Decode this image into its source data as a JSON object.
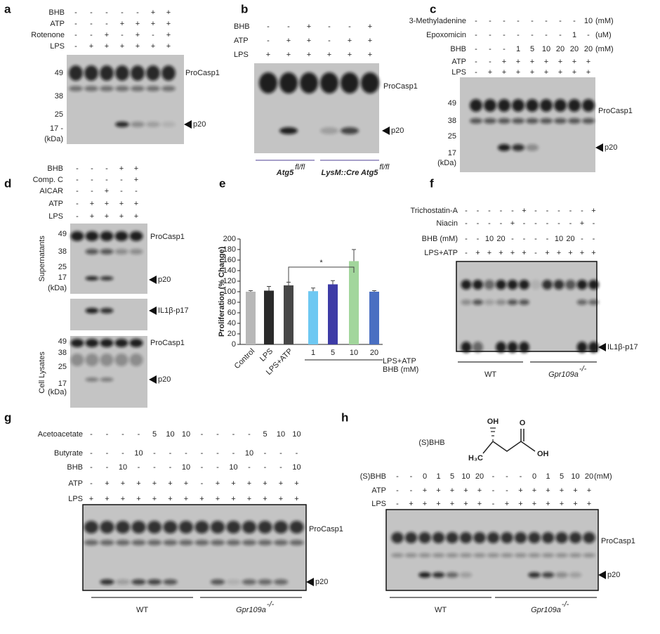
{
  "figure": {
    "a": {
      "letter": "a",
      "rows": [
        {
          "label": "BHB",
          "cells": [
            "-",
            "-",
            "-",
            "-",
            "-",
            "+",
            "+"
          ]
        },
        {
          "label": "ATP",
          "cells": [
            "-",
            "-",
            "-",
            "+",
            "+",
            "+",
            "+"
          ]
        },
        {
          "label": "Rotenone",
          "cells": [
            "-",
            "-",
            "+",
            "-",
            "+",
            "-",
            "+"
          ]
        },
        {
          "label": "LPS",
          "cells": [
            "-",
            "+",
            "+",
            "+",
            "+",
            "+",
            "+"
          ]
        }
      ],
      "blots": [
        {
          "markers": [
            "49",
            "38",
            "25",
            "17 -",
            "(kDa)"
          ],
          "bands": [
            "ProCasp1",
            "p20"
          ]
        }
      ]
    },
    "b": {
      "letter": "b",
      "rows": [
        {
          "label": "BHB",
          "cells": [
            "-",
            "-",
            "+",
            "-",
            "-",
            "+"
          ]
        },
        {
          "label": "ATP",
          "cells": [
            "-",
            "+",
            "+",
            "-",
            "+",
            "+"
          ]
        },
        {
          "label": "LPS",
          "cells": [
            "+",
            "+",
            "+",
            "+",
            "+",
            "+"
          ]
        }
      ],
      "blots": [
        {
          "bands": [
            "ProCasp1",
            "p20"
          ]
        }
      ],
      "groups": [
        {
          "text": "Atg5",
          "sup": "fl/fl"
        },
        {
          "text": "LysM::Cre Atg5",
          "sup": "fl/fl"
        }
      ]
    },
    "c": {
      "letter": "c",
      "rows": [
        {
          "label": "3-Methyladenine",
          "cells": [
            "-",
            "-",
            "-",
            "-",
            "-",
            "-",
            "-",
            "-",
            "10"
          ],
          "unit": "(mM)"
        },
        {
          "label": "Epoxomicin",
          "cells": [
            "-",
            "-",
            "-",
            "-",
            "-",
            "-",
            "-",
            "1",
            "-"
          ],
          "unit": "(uM)"
        },
        {
          "label": "BHB",
          "cells": [
            "-",
            "-",
            "-",
            "1",
            "5",
            "10",
            "20",
            "20",
            "20"
          ],
          "unit": "(mM)"
        },
        {
          "label": "ATP",
          "cells": [
            "-",
            "-",
            "+",
            "+",
            "+",
            "+",
            "+",
            "+",
            "+"
          ]
        },
        {
          "label": "LPS",
          "cells": [
            "-",
            "+",
            "+",
            "+",
            "+",
            "+",
            "+",
            "+",
            "+"
          ]
        }
      ],
      "blots": [
        {
          "markers": [
            "49",
            "38",
            "25",
            "17",
            "(kDa)"
          ],
          "bands": [
            "ProCasp1",
            "p20"
          ]
        }
      ]
    },
    "d": {
      "letter": "d",
      "rows": [
        {
          "label": "BHB",
          "cells": [
            "-",
            "-",
            "-",
            "+",
            "+"
          ]
        },
        {
          "label": "Comp. C",
          "cells": [
            "-",
            "-",
            "-",
            "-",
            "+"
          ]
        },
        {
          "label": "AICAR",
          "cells": [
            "-",
            "-",
            "+",
            "-",
            "-"
          ]
        },
        {
          "label": "ATP",
          "cells": [
            "-",
            "+",
            "+",
            "+",
            "+"
          ]
        },
        {
          "label": "LPS",
          "cells": [
            "-",
            "+",
            "+",
            "+",
            "+"
          ]
        }
      ],
      "blots": [
        {
          "side": "Supernatants",
          "markers": [
            "49",
            "38",
            "25",
            "17",
            "(kDa)"
          ],
          "bands": [
            "ProCasp1",
            "p20"
          ]
        },
        {
          "bands": [
            "IL1β-p17"
          ]
        },
        {
          "side": "Cell Lysates",
          "markers": [
            "49",
            "38",
            "25",
            "17",
            "(kDa)"
          ],
          "bands": [
            "ProCasp1",
            "p20"
          ]
        }
      ]
    },
    "e": {
      "letter": "e"
    },
    "f": {
      "letter": "f",
      "rows": [
        {
          "label": "Trichostatin-A",
          "cells": [
            "-",
            "-",
            "-",
            "-",
            "-",
            "+",
            "-",
            "-",
            "-",
            "-",
            "-",
            "+"
          ]
        },
        {
          "label": "Niacin",
          "cells": [
            "-",
            "-",
            "-",
            "-",
            "+",
            "-",
            "-",
            "-",
            "-",
            "-",
            "+",
            "-"
          ]
        },
        {
          "label": "BHB (mM)",
          "cells": [
            "-",
            "-",
            "10",
            "20",
            "-",
            "-",
            "-",
            "-",
            "10",
            "20",
            "-",
            "-"
          ]
        },
        {
          "label": "LPS+ATP",
          "cells": [
            "-",
            "+",
            "+",
            "+",
            "+",
            "+",
            "-",
            "+",
            "+",
            "+",
            "+",
            "+"
          ]
        }
      ],
      "blots": [
        {
          "bands": [
            "IL1β-p17"
          ]
        }
      ],
      "groups": [
        {
          "text": "WT"
        },
        {
          "text": "Gpr109a",
          "sup": "-/-"
        }
      ]
    },
    "g": {
      "letter": "g",
      "rows": [
        {
          "label": "Acetoacetate",
          "cells": [
            "-",
            "-",
            "-",
            "-",
            "5",
            "10",
            "10",
            "-",
            "-",
            "-",
            "-",
            "5",
            "10",
            "10"
          ]
        },
        {
          "label": "Butyrate",
          "cells": [
            "-",
            "-",
            "-",
            "10",
            "-",
            "-",
            "-",
            "-",
            "-",
            "-",
            "10",
            "-",
            "-",
            "-"
          ]
        },
        {
          "label": "BHB",
          "cells": [
            "-",
            "-",
            "10",
            "-",
            "-",
            "-",
            "10",
            "-",
            "-",
            "10",
            "-",
            "-",
            "-",
            "10"
          ]
        },
        {
          "label": "ATP",
          "cells": [
            "-",
            "+",
            "+",
            "+",
            "+",
            "+",
            "+",
            "-",
            "+",
            "+",
            "+",
            "+",
            "+",
            "+"
          ]
        },
        {
          "label": "LPS",
          "cells": [
            "+",
            "+",
            "+",
            "+",
            "+",
            "+",
            "+",
            "+",
            "+",
            "+",
            "+",
            "+",
            "+",
            "+"
          ]
        }
      ],
      "blots": [
        {
          "bands": [
            "ProCasp1",
            "p20"
          ]
        }
      ],
      "groups": [
        {
          "text": "WT"
        },
        {
          "text": "Gpr109a",
          "sup": "-/-"
        }
      ]
    },
    "h": {
      "letter": "h",
      "structure": {
        "name": "(S)BHB",
        "atoms": [
          "OH",
          "H₃C",
          "O",
          "OH"
        ]
      },
      "rows": [
        {
          "label": "(S)BHB",
          "cells": [
            "-",
            "-",
            "0",
            "1",
            "5",
            "10",
            "20",
            "-",
            "-",
            "-",
            "0",
            "1",
            "5",
            "10",
            "20"
          ],
          "unit": "(mM)"
        },
        {
          "label": "ATP",
          "cells": [
            "-",
            "-",
            "+",
            "+",
            "+",
            "+",
            "+",
            "-",
            "-",
            "+",
            "+",
            "+",
            "+",
            "+",
            "+"
          ]
        },
        {
          "label": "LPS",
          "cells": [
            "-",
            "+",
            "+",
            "+",
            "+",
            "+",
            "+",
            "-",
            "+",
            "+",
            "+",
            "+",
            "+",
            "+",
            "+"
          ]
        }
      ],
      "blots": [
        {
          "bands": [
            "ProCasp1",
            "p20"
          ]
        }
      ],
      "groups": [
        {
          "text": "WT"
        },
        {
          "text": "Gpr109a",
          "sup": "-/-"
        }
      ]
    }
  },
  "chart_data": {
    "type": "bar",
    "y_label": "Proliferation (% Change)",
    "categories": [
      "Control",
      "LPS",
      "LPS+ATP",
      "1",
      "5",
      "10",
      "20"
    ],
    "values": [
      100,
      102,
      112,
      101,
      114,
      158,
      100
    ],
    "errors": [
      2,
      8,
      6,
      6,
      7,
      22,
      2
    ],
    "colors": [
      "#b8b8b8",
      "#2a2a2a",
      "#474747",
      "#6ec8f2",
      "#3d3ba6",
      "#a2d69c",
      "#4a6fc2"
    ],
    "ylim": [
      0,
      200
    ],
    "yticks": [
      0,
      20,
      40,
      60,
      80,
      100,
      120,
      140,
      160,
      180,
      200
    ],
    "group_label": "LPS+ATP",
    "group_sublabel": "BHB (mM)",
    "significance": "*"
  }
}
